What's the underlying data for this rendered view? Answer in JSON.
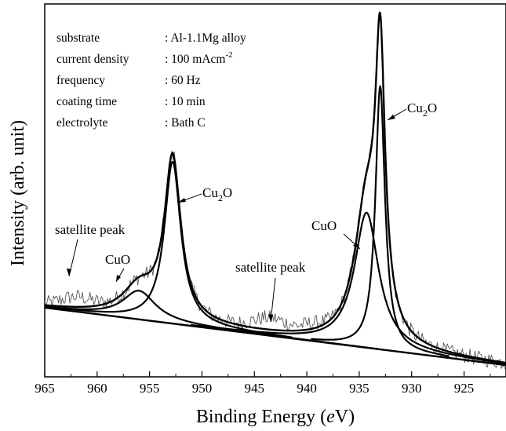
{
  "chart_data": {
    "type": "line",
    "xlabel_main": "Binding Energy (",
    "xlabel_italic": "e",
    "xlabel_end": "V)",
    "ylabel": "Intensity (arb. unit)",
    "x_reversed": true,
    "xlim": [
      965,
      921
    ],
    "ylim": [
      0,
      100
    ],
    "x_ticks": [
      965,
      960,
      955,
      950,
      945,
      940,
      935,
      930,
      925
    ],
    "info": [
      {
        "key": "substrate",
        "value": ": Al-1.1Mg alloy"
      },
      {
        "key": "current density",
        "value": ": 100 mAcm",
        "sup": "-2"
      },
      {
        "key": "frequency",
        "value": ": 60 Hz"
      },
      {
        "key": "coating time",
        "value": ": 10 min"
      },
      {
        "key": "electrolyte",
        "value": ": Bath C"
      }
    ],
    "annotations": {
      "sat1": "satellite peak",
      "cuo1": "CuO",
      "cu2o1_a": "Cu",
      "cu2o1_sub": "2",
      "cu2o1_b": "O",
      "sat2": "satellite peak",
      "cuo2": "CuO",
      "cu2o2_a": "Cu",
      "cu2o2_sub": "2",
      "cu2o2_b": "O"
    },
    "background": {
      "x": [
        965,
        921
      ],
      "y": [
        17,
        0
      ]
    },
    "peaks": [
      {
        "name": "CuO",
        "center": 956.0,
        "height": 8.5,
        "width": 1.9
      },
      {
        "name": "Cu2O",
        "center": 952.8,
        "height": 48,
        "width": 0.95
      },
      {
        "name": "CuO",
        "center": 934.3,
        "height": 40,
        "width": 1.4
      },
      {
        "name": "Cu2O",
        "center": 933.0,
        "height": 78,
        "width": 0.55
      }
    ]
  }
}
